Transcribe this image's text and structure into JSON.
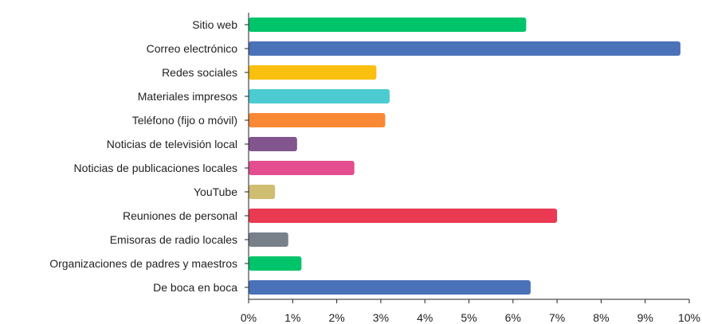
{
  "chart_data": {
    "type": "bar",
    "orientation": "horizontal",
    "categories": [
      "Sitio web",
      "Correo electrónico",
      "Redes sociales",
      "Materiales impresos",
      "Teléfono (fijo o móvil)",
      "Noticias de televisión local",
      "Noticias de publicaciones locales",
      "YouTube",
      "Reuniones de personal",
      "Emisoras de radio locales",
      "Organizaciones de padres y maestros",
      "De boca en boca"
    ],
    "values": [
      6.3,
      9.8,
      2.9,
      3.2,
      3.1,
      1.1,
      2.4,
      0.6,
      7.0,
      0.9,
      1.2,
      6.4
    ],
    "colors": [
      "#00c46a",
      "#4a72b8",
      "#fbbf0f",
      "#4ccbd0",
      "#fb8834",
      "#82558e",
      "#e44d8f",
      "#cfbd72",
      "#e93a52",
      "#78808a",
      "#00c46a",
      "#4a72b8"
    ],
    "xlim": [
      0,
      10
    ],
    "xticks": [
      "0%",
      "1%",
      "2%",
      "3%",
      "4%",
      "5%",
      "6%",
      "7%",
      "8%",
      "9%",
      "10%"
    ],
    "grid": false,
    "legend": "none"
  }
}
